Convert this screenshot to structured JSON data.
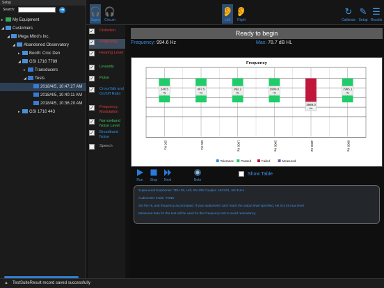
{
  "setup": {
    "header": "Setup",
    "search_label": "Search:",
    "search_value": "",
    "search_placeholder": ""
  },
  "tree": [
    {
      "label": "My Equipment",
      "depth": 0,
      "expanded": false
    },
    {
      "label": "Customers",
      "depth": 0,
      "expanded": true
    },
    {
      "label": "Mega Mind's Inc.",
      "depth": 1,
      "expanded": true
    },
    {
      "label": "Abandoned Observatory",
      "depth": 2,
      "expanded": true
    },
    {
      "label": "Booth: Croc Den",
      "depth": 3,
      "expanded": false
    },
    {
      "label": "GSI 1716 7789",
      "depth": 3,
      "expanded": true
    },
    {
      "label": "Transducers",
      "depth": 4,
      "expanded": false
    },
    {
      "label": "Tests",
      "depth": 4,
      "expanded": true
    },
    {
      "label": "2018/4/5, 10:47:27 AM",
      "depth": 5,
      "selected": true
    },
    {
      "label": "2018/4/5, 10:40:11 AM",
      "depth": 5
    },
    {
      "label": "2018/4/5, 10:36:20 AM",
      "depth": 5
    },
    {
      "label": "GSI 1716 443",
      "depth": 3,
      "expanded": false
    }
  ],
  "toolbar": {
    "supra": "Supra",
    "circum": "Circum",
    "left": "Left",
    "right": "Right",
    "calibrate": "Calibrate",
    "setup": "Setup",
    "results": "Results"
  },
  "tests": [
    {
      "label": "Distortion",
      "color": "red",
      "checked": true
    },
    {
      "label": "Frequency",
      "color": "red",
      "checked": true,
      "selected": true
    },
    {
      "label": "Hearing Level",
      "color": "red",
      "checked": true
    },
    {
      "label": "Linearity",
      "color": "green",
      "checked": true
    },
    {
      "label": "Pulse",
      "color": "green",
      "checked": true
    },
    {
      "label": "CrossTalk and On/Off Ratio",
      "color": "blue",
      "checked": true
    },
    {
      "label": "Frequency Modulation",
      "color": "red",
      "checked": true
    },
    {
      "label": "Narrowband Noise Level",
      "color": "green",
      "checked": true
    },
    {
      "label": "Broadband Noise",
      "color": "blue",
      "checked": true
    },
    {
      "label": "Speech",
      "color": "gray",
      "checked": false
    }
  ],
  "main": {
    "status": "Ready to begin",
    "frequency_label": "Frequency:",
    "frequency_value": "994.6 Hz",
    "max_label": "Max:",
    "max_value": "78.7 dB HL",
    "show_table": "Show Table"
  },
  "controls": {
    "run": "Run",
    "stop": "Stop",
    "next": "Next",
    "note": "Note"
  },
  "info": {
    "line1": "Supra-aural Earphones: TDH 39, Left, SN 235 Coupler: AEC201, SN 318-1",
    "line2": "Audiometer mode: TONE",
    "line3": "Set the HL and frequency as prompted. If your audiometer can't reach the output level specified, set it to its max level.",
    "line4": "Measured data for this test will be used for the Frequency test to avoid redundancy."
  },
  "status_message": "TestSuiteResult record saved successfully",
  "colors": {
    "accent": "#3d94e6",
    "passed": "#1fcc6a",
    "failed": "#c0163a",
    "tolerance": "#3b8fd9",
    "measured": "#7b5aa6"
  },
  "chart_data": {
    "type": "bar",
    "title": "Frequency",
    "categories": [
      "250 Hz",
      "500 Hz",
      "1000 Hz",
      "2000 Hz",
      "4000 Hz",
      "8000 Hz"
    ],
    "measured_labels": [
      "248.5 Hz",
      "497.5 Hz",
      "992.2 Hz",
      "1989.0 Hz",
      "3989.0 Hz",
      "7965.1 Hz"
    ],
    "status": [
      "passed",
      "passed",
      "passed",
      "passed",
      "failed",
      "passed"
    ],
    "legend": [
      "Tolerance",
      "Passed",
      "Failed",
      "Measured"
    ],
    "legend_position": "bottom",
    "grid": true
  }
}
